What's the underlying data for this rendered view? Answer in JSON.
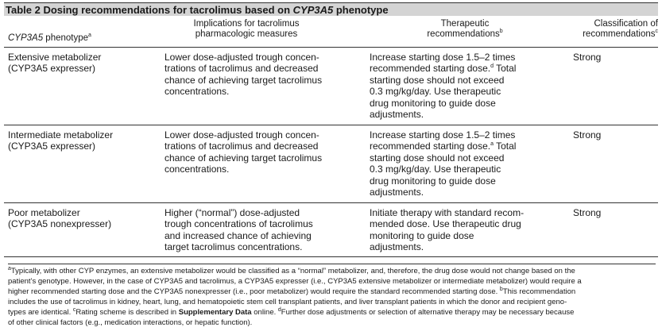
{
  "title": {
    "prefix": "Table 2  Dosing recommendations for tacrolimus based on ",
    "gene": "CYP3A5",
    "suffix": " phenotype"
  },
  "header": {
    "col1_gene": "CYP3A5",
    "col1_text": " phenotype",
    "col1_sup": "a",
    "col2_line1": "Implications for tacrolimus",
    "col2_line2": "pharmacologic measures",
    "col3_line1": "Therapeutic",
    "col3_line2": "recommendations",
    "col3_sup": "b",
    "col4_line1": "Classification of",
    "col4_line2": "recommendations",
    "col4_sup": "c"
  },
  "rows": [
    {
      "phenotype": [
        "Extensive metabolizer",
        "(CYP3A5 expresser)"
      ],
      "implications": [
        "Lower dose-adjusted trough concen-",
        "trations of tacrolimus and decreased",
        "chance of achieving target tacrolimus",
        "concentrations."
      ],
      "rec_l1": "Increase starting dose 1.5–2 times",
      "rec_l2a": "recommended starting dose.",
      "rec_l2sup": "d",
      "rec_l2b": " Total",
      "rec_rest": [
        "starting dose should not exceed",
        "0.3 mg/kg/day. Use therapeutic",
        "drug monitoring to guide dose",
        "adjustments."
      ],
      "classification": "Strong"
    },
    {
      "phenotype": [
        "Intermediate metabolizer",
        "(CYP3A5 expresser)"
      ],
      "implications": [
        "Lower dose-adjusted trough concen-",
        "trations of tacrolimus and decreased",
        "chance of achieving target tacrolimus",
        "concentrations."
      ],
      "rec_l1": "Increase starting dose 1.5–2 times",
      "rec_l2a": "recommended starting dose.",
      "rec_l2sup": "a",
      "rec_l2b": " Total",
      "rec_rest": [
        "starting dose should not exceed",
        "0.3 mg/kg/day. Use therapeutic",
        "drug monitoring to guide dose",
        "adjustments."
      ],
      "classification": "Strong"
    },
    {
      "phenotype": [
        "Poor metabolizer",
        "(CYP3A5 nonexpresser)"
      ],
      "implications": [
        "Higher (“normal”) dose-adjusted",
        "trough concentrations of tacrolimus",
        "and increased chance of achieving",
        "target tacrolimus concentrations."
      ],
      "rec_lines": [
        "Initiate therapy with standard recom-",
        "mended dose. Use therapeutic drug",
        "monitoring to guide dose",
        "adjustments."
      ],
      "classification": "Strong"
    }
  ],
  "footnotes": {
    "a_sup": "a",
    "l1": "Typically, with other CYP enzymes, an extensive metabolizer would be classified as a “normal” metabolizer, and, therefore, the drug dose would not change based on the",
    "l2": "patient’s genotype. However, in the case of CYP3A5 and tacrolimus, a CYP3A5 expresser (i.e., CYP3A5 extensive metabolizer or intermediate metabolizer) would require a",
    "l3a": "higher recommended starting dose and the CYP3A5 nonexpresser (i.e., poor metabolizer) would require the standard recommended starting dose. ",
    "b_sup": "b",
    "l3b": "This recommendation",
    "l4": "includes the use of tacrolimus in kidney, heart, lung, and hematopoietic stem cell transplant patients, and liver transplant patients in which the donor and recipient geno-",
    "l5a": "types are identical. ",
    "c_sup": "c",
    "l5b": "Rating scheme is described in ",
    "l5bold": "Supplementary Data",
    "l5c": " online. ",
    "d_sup": "d",
    "l5d": "Further dose adjustments or selection of alternative therapy may be necessary because",
    "l6": "of other clinical factors (e.g., medication interactions, or hepatic function)."
  }
}
